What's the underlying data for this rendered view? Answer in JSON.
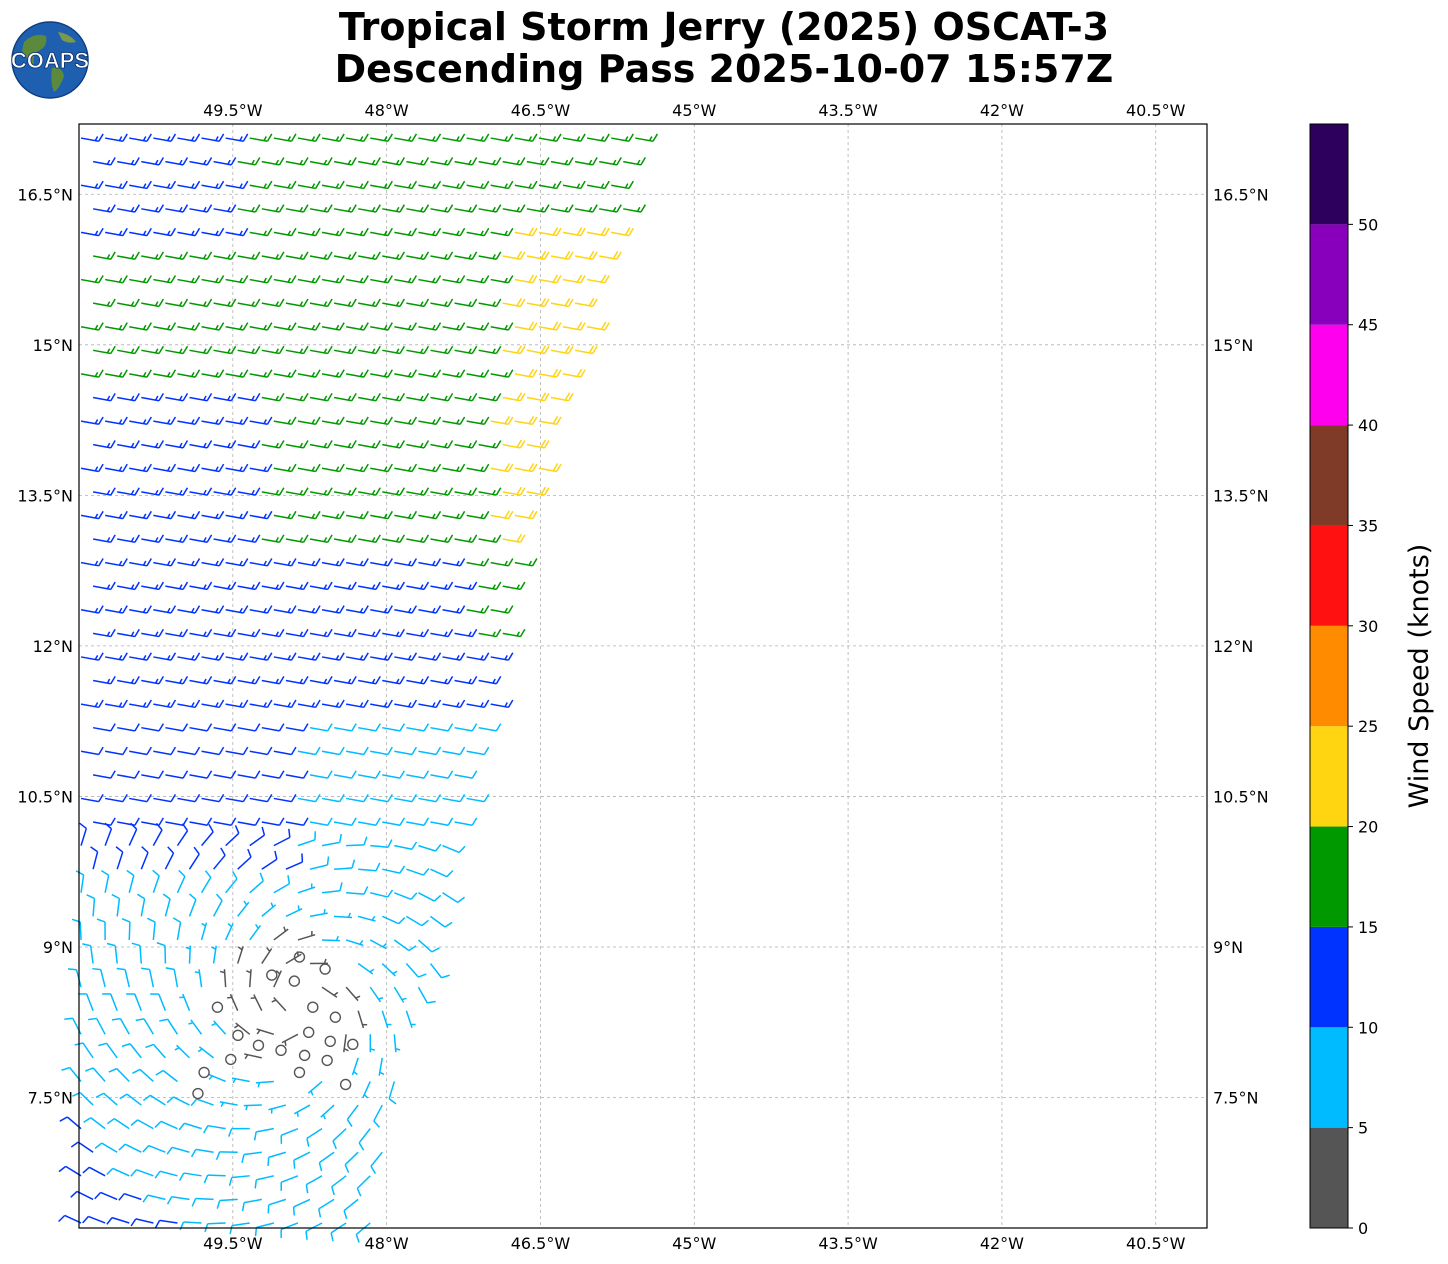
{
  "title": {
    "line1": "Tropical Storm Jerry (2025) OSCAT-3",
    "line2": "Descending Pass 2025-10-07 15:57Z"
  },
  "logo": {
    "text": "COAPS",
    "icon": "globe-icon"
  },
  "map": {
    "lon_range": [
      -51.0,
      -40.0
    ],
    "lat_range": [
      6.2,
      17.2
    ],
    "gridlines": true,
    "lon_ticks": [
      {
        "value": -49.5,
        "label": "49.5°W"
      },
      {
        "value": -48.0,
        "label": "48°W"
      },
      {
        "value": -46.5,
        "label": "46.5°W"
      },
      {
        "value": -45.0,
        "label": "45°W"
      },
      {
        "value": -43.5,
        "label": "43.5°W"
      },
      {
        "value": -42.0,
        "label": "42°W"
      },
      {
        "value": -40.5,
        "label": "40.5°W"
      }
    ],
    "lat_ticks": [
      {
        "value": 16.5,
        "label": "16.5°N"
      },
      {
        "value": 15.0,
        "label": "15°N"
      },
      {
        "value": 13.5,
        "label": "13.5°N"
      },
      {
        "value": 12.0,
        "label": "12°N"
      },
      {
        "value": 10.5,
        "label": "10.5°N"
      },
      {
        "value": 9.0,
        "label": "9°N"
      },
      {
        "value": 7.5,
        "label": "7.5°N"
      }
    ],
    "swath_edge_lon_by_lat": [
      [
        17.2,
        -45.4
      ],
      [
        16.3,
        -45.7
      ],
      [
        15.0,
        -46.1
      ],
      [
        13.5,
        -46.6
      ],
      [
        12.0,
        -46.8
      ],
      [
        10.5,
        -47.2
      ],
      [
        9.0,
        -47.5
      ],
      [
        8.0,
        -47.8
      ],
      [
        6.2,
        -48.1
      ]
    ]
  },
  "colorbar": {
    "title": "Wind Speed (knots)",
    "ticks": [
      "0",
      "5",
      "10",
      "15",
      "20",
      "25",
      "30",
      "35",
      "40",
      "45",
      "50"
    ],
    "bins": [
      {
        "min": 0,
        "max": 5,
        "color": "#555555"
      },
      {
        "min": 5,
        "max": 10,
        "color": "#00bbff"
      },
      {
        "min": 10,
        "max": 15,
        "color": "#0033ff"
      },
      {
        "min": 15,
        "max": 20,
        "color": "#009900"
      },
      {
        "min": 20,
        "max": 25,
        "color": "#ffd411"
      },
      {
        "min": 25,
        "max": 30,
        "color": "#ff8c00"
      },
      {
        "min": 30,
        "max": 35,
        "color": "#ff1111"
      },
      {
        "min": 35,
        "max": 40,
        "color": "#803a28"
      },
      {
        "min": 40,
        "max": 45,
        "color": "#ff00ee"
      },
      {
        "min": 45,
        "max": 50,
        "color": "#8800bb"
      },
      {
        "min": 50,
        "max": 55,
        "color": "#2e005e"
      }
    ]
  },
  "wind_field": {
    "units": "knots",
    "storm_center": {
      "lat": 8.4,
      "lon": -48.9
    },
    "calm_points": [
      {
        "lat": 8.9,
        "lon": -48.85
      },
      {
        "lat": 8.78,
        "lon": -48.6
      },
      {
        "lat": 8.72,
        "lon": -49.12
      },
      {
        "lat": 8.66,
        "lon": -48.9
      },
      {
        "lat": 8.4,
        "lon": -49.65
      },
      {
        "lat": 8.4,
        "lon": -48.72
      },
      {
        "lat": 8.3,
        "lon": -48.5
      },
      {
        "lat": 8.15,
        "lon": -48.76
      },
      {
        "lat": 8.12,
        "lon": -49.45
      },
      {
        "lat": 8.06,
        "lon": -48.55
      },
      {
        "lat": 8.02,
        "lon": -49.25
      },
      {
        "lat": 8.03,
        "lon": -48.33
      },
      {
        "lat": 7.97,
        "lon": -49.03
      },
      {
        "lat": 7.92,
        "lon": -48.8
      },
      {
        "lat": 7.88,
        "lon": -49.52
      },
      {
        "lat": 7.87,
        "lon": -48.58
      },
      {
        "lat": 7.75,
        "lon": -49.78
      },
      {
        "lat": 7.75,
        "lon": -48.85
      },
      {
        "lat": 7.63,
        "lon": -48.4
      },
      {
        "lat": 7.54,
        "lon": -49.84
      }
    ]
  }
}
